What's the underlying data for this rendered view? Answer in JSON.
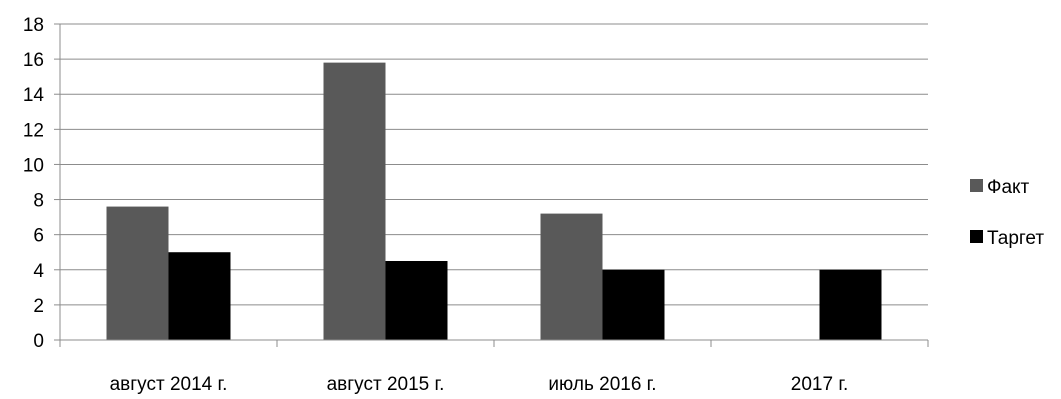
{
  "chart_data": {
    "type": "bar",
    "title": "",
    "xlabel": "",
    "ylabel": "",
    "categories": [
      "август 2014 г.",
      "август 2015 г.",
      "июль 2016 г.",
      "2017 г."
    ],
    "series": [
      {
        "name": "Факт",
        "values": [
          7.6,
          15.8,
          7.2,
          null
        ],
        "color": "#595959"
      },
      {
        "name": "Таргет",
        "values": [
          5.0,
          4.5,
          4.0,
          4.0
        ],
        "color": "#000000"
      }
    ],
    "yticks": [
      "0",
      "2",
      "4",
      "6",
      "8",
      "10",
      "12",
      "14",
      "16",
      "18"
    ],
    "ylim": [
      0,
      18
    ],
    "grid": true,
    "legend_position": "right"
  }
}
